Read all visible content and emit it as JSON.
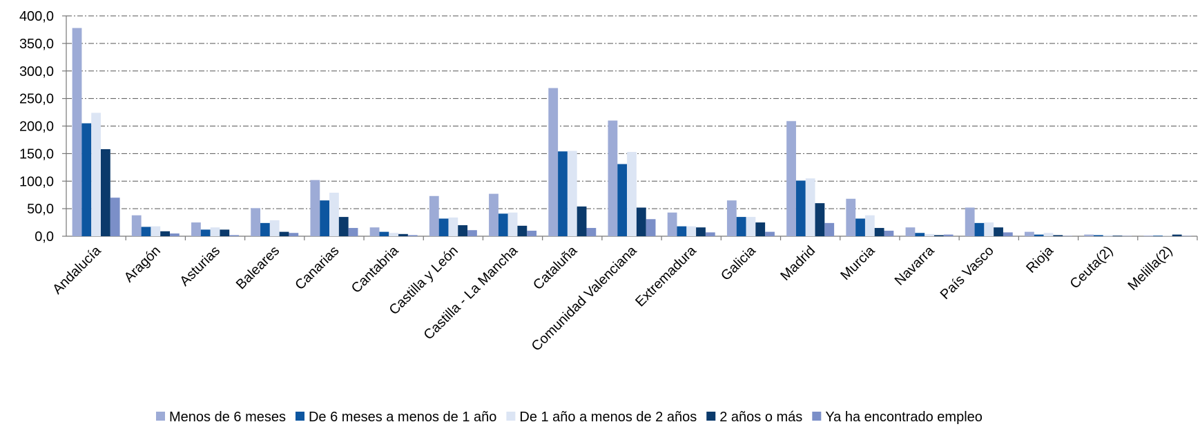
{
  "chart_data": {
    "type": "bar",
    "categories": [
      "Andalucía",
      "Aragón",
      "Asturias",
      "Baleares",
      "Canarias",
      "Cantabria",
      "Castilla y León",
      "Castilla - La Mancha",
      "Cataluña",
      "Comunidad Valenciana",
      "Extremadura",
      "Galicia",
      "Madrid",
      "Murcia",
      "Navarra",
      "País Vasco",
      "Rioja",
      "Ceuta(2)",
      "Melilla(2)"
    ],
    "series": [
      {
        "name": "Menos de 6 meses",
        "color": "#9dabd6",
        "values": [
          378,
          38,
          25,
          51,
          102,
          16,
          73,
          77,
          269,
          210,
          43,
          65,
          209,
          68,
          16,
          52,
          8,
          3,
          1
        ]
      },
      {
        "name": "De 6 meses a menos de 1 año",
        "color": "#0d56a0",
        "values": [
          205,
          17,
          12,
          24,
          65,
          8,
          32,
          41,
          154,
          131,
          18,
          35,
          101,
          32,
          6,
          24,
          3,
          2,
          1
        ]
      },
      {
        "name": "De 1 año a menos de 2 años",
        "color": "#dce5f4",
        "values": [
          224,
          18,
          16,
          29,
          79,
          6,
          34,
          43,
          155,
          153,
          18,
          35,
          105,
          38,
          4,
          25,
          6,
          2,
          0.5
        ]
      },
      {
        "name": "2 años o más",
        "color": "#0b3a6b",
        "values": [
          158,
          9,
          12,
          8,
          35,
          4,
          20,
          19,
          54,
          52,
          16,
          25,
          60,
          15,
          2,
          16,
          2,
          1,
          3
        ]
      },
      {
        "name": "Ya ha encontrado empleo",
        "color": "#7b8fc8",
        "values": [
          70,
          5,
          2,
          6,
          15,
          2,
          11,
          10,
          15,
          31,
          7,
          8,
          24,
          10,
          3,
          7,
          0.5,
          0.5,
          0.5
        ]
      }
    ],
    "ylim": [
      0,
      400
    ],
    "yticks": [
      {
        "value": 0,
        "label": "0,0"
      },
      {
        "value": 50,
        "label": "50,0"
      },
      {
        "value": 100,
        "label": "100,0"
      },
      {
        "value": 150,
        "label": "150,0"
      },
      {
        "value": 200,
        "label": "200,0"
      },
      {
        "value": 250,
        "label": "250,0"
      },
      {
        "value": 300,
        "label": "300,0"
      },
      {
        "value": 350,
        "label": "350,0"
      },
      {
        "value": 400,
        "label": "400,0"
      }
    ],
    "grid": true
  }
}
